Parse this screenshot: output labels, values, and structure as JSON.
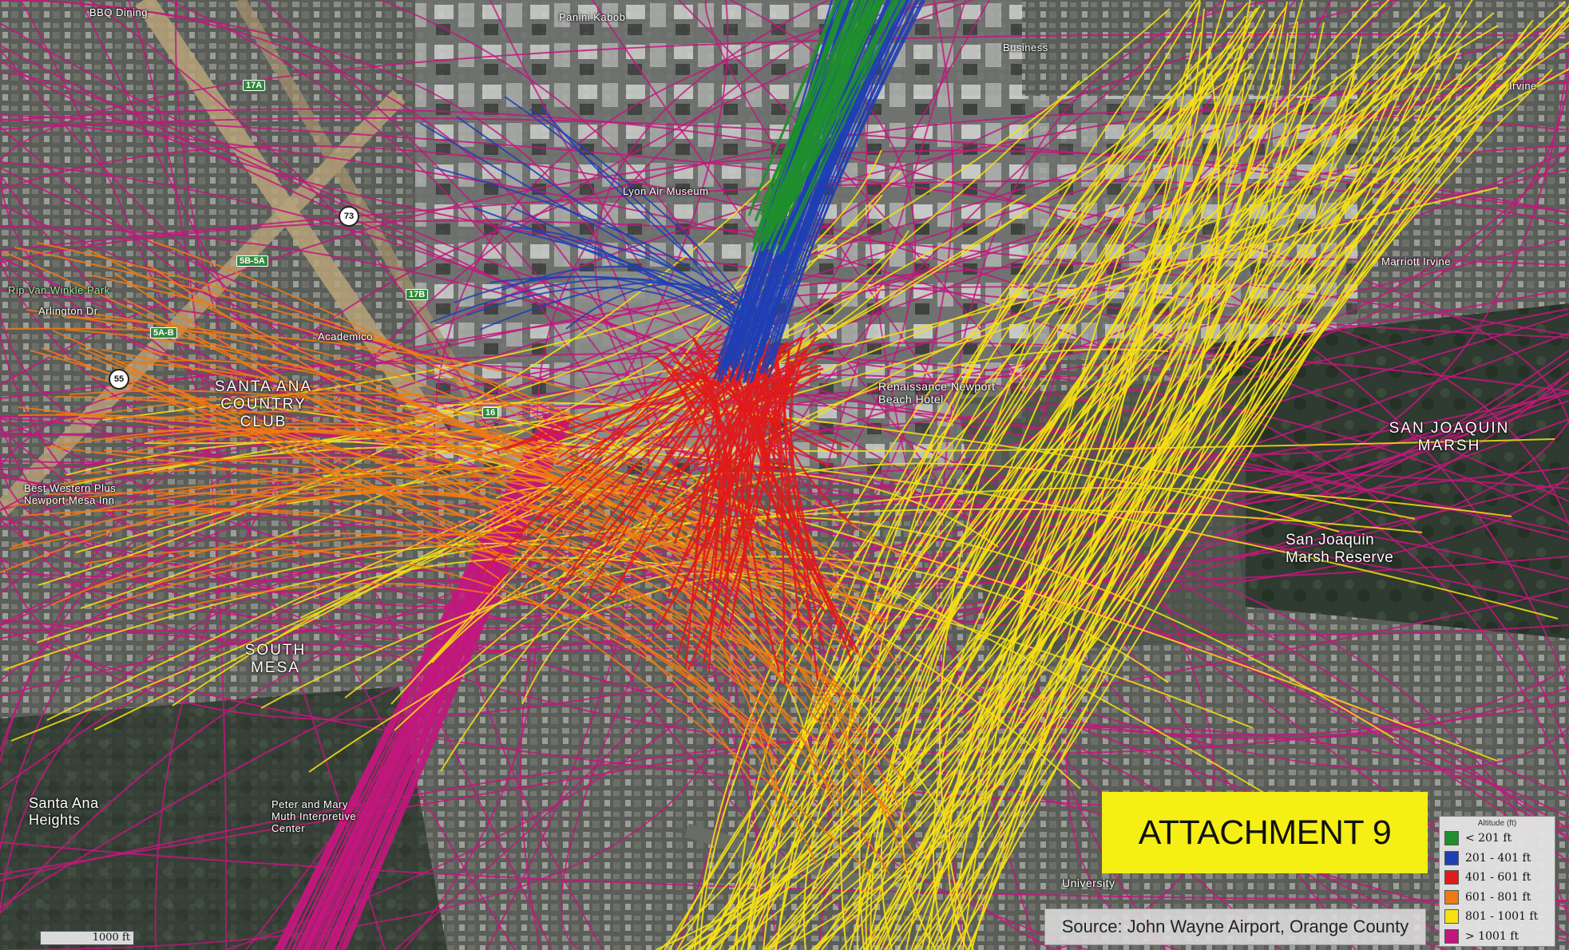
{
  "title": "ATTACHMENT 9",
  "source": "Source: John Wayne Airport, Orange County",
  "legend": {
    "title": "Altitude (ft)",
    "items": [
      {
        "label": "< 201 ft",
        "color": "#1f8f2e"
      },
      {
        "label": "201 - 401 ft",
        "color": "#1e3fb5"
      },
      {
        "label": "401 - 601 ft",
        "color": "#e01b1b"
      },
      {
        "label": "601 - 801 ft",
        "color": "#f07a12"
      },
      {
        "label": "801 - 1001 ft",
        "color": "#f6e012"
      },
      {
        "label": "> 1001 ft",
        "color": "#c2177d"
      }
    ]
  },
  "scale": "1000 ft",
  "places": [
    {
      "name": "BBQ Dining"
    },
    {
      "name": "Panini Kabob"
    },
    {
      "name": "Business"
    },
    {
      "name": "Rip Van Winkle Park"
    },
    {
      "name": "Arlington Dr"
    },
    {
      "name": "Academico"
    },
    {
      "name": "SANTA ANA COUNTRY CLUB"
    },
    {
      "name": "Best Western Plus Newport Mesa Inn"
    },
    {
      "name": "SOUTH MESA"
    },
    {
      "name": "Santa Ana Heights"
    },
    {
      "name": "Peter and Mary Muth Interpretive Center"
    },
    {
      "name": "Renaissance Newport Beach Hotel"
    },
    {
      "name": "SAN JOAQUIN MARSH"
    },
    {
      "name": "San Joaquin Marsh Reserve"
    },
    {
      "name": "Lyon Air Museum"
    },
    {
      "name": "Marriott Irvine"
    },
    {
      "name": "Irvine"
    },
    {
      "name": "University"
    }
  ],
  "routes": [
    "55",
    "73",
    "17B",
    "5B-5A",
    "5A-B",
    "16",
    "17A"
  ]
}
